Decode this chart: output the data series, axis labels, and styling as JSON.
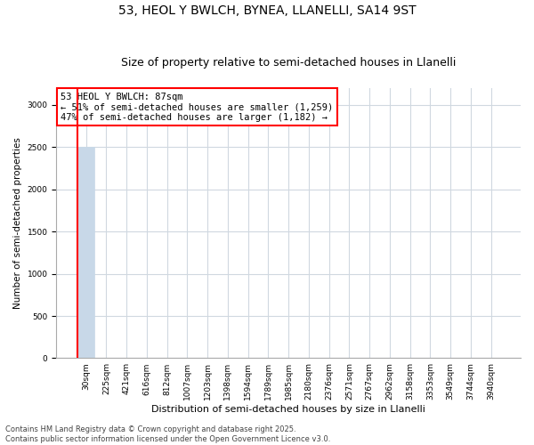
{
  "title": "53, HEOL Y BWLCH, BYNEA, LLANELLI, SA14 9ST",
  "subtitle": "Size of property relative to semi-detached houses in Llanelli",
  "xlabel": "Distribution of semi-detached houses by size in Llanelli",
  "ylabel": "Number of semi-detached properties",
  "categories": [
    "30sqm",
    "225sqm",
    "421sqm",
    "616sqm",
    "812sqm",
    "1007sqm",
    "1203sqm",
    "1398sqm",
    "1594sqm",
    "1789sqm",
    "1985sqm",
    "2180sqm",
    "2376sqm",
    "2571sqm",
    "2767sqm",
    "2962sqm",
    "3158sqm",
    "3353sqm",
    "3549sqm",
    "3744sqm",
    "3940sqm"
  ],
  "values": [
    2500,
    5,
    3,
    2,
    1,
    1,
    1,
    1,
    0,
    0,
    0,
    0,
    0,
    0,
    0,
    0,
    0,
    0,
    0,
    0,
    0
  ],
  "bar_color": "#c8d8e8",
  "property_bar_index": 0,
  "annotation_text": "53 HEOL Y BWLCH: 87sqm\n← 51% of semi-detached houses are smaller (1,259)\n47% of semi-detached houses are larger (1,182) →",
  "annotation_box_color": "#ff0000",
  "ylim": [
    0,
    3200
  ],
  "yticks": [
    0,
    500,
    1000,
    1500,
    2000,
    2500,
    3000
  ],
  "footnote": "Contains HM Land Registry data © Crown copyright and database right 2025.\nContains public sector information licensed under the Open Government Licence v3.0.",
  "bg_color": "#ffffff",
  "grid_color": "#d0d8e0",
  "title_fontsize": 10,
  "subtitle_fontsize": 9,
  "annotation_fontsize": 7.5,
  "tick_fontsize": 6.5,
  "ylabel_fontsize": 7.5,
  "xlabel_fontsize": 8
}
